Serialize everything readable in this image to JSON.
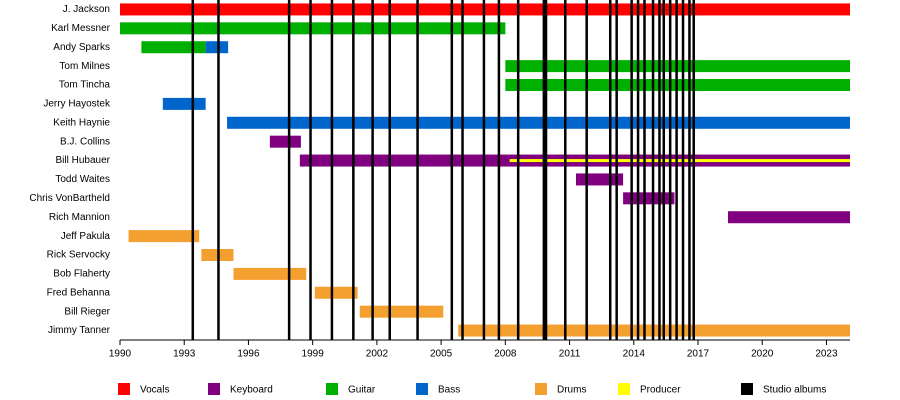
{
  "chart_data": {
    "type": "timeline",
    "xlim": [
      1990,
      2024.1
    ],
    "xticks": [
      1990,
      1993,
      1996,
      1999,
      2002,
      2005,
      2008,
      2011,
      2014,
      2017,
      2020,
      2023
    ],
    "roles": [
      {
        "name": "Vocals",
        "color": "#ff0000"
      },
      {
        "name": "Keyboard",
        "color": "#800080"
      },
      {
        "name": "Guitar",
        "color": "#00b000"
      },
      {
        "name": "Bass",
        "color": "#0066cc"
      },
      {
        "name": "Drums",
        "color": "#f4a030"
      },
      {
        "name": "Producer",
        "color": "#ffff00"
      }
    ],
    "albums": {
      "name": "Studio albums",
      "color": "#000000",
      "values": [
        1993.4,
        1994.6,
        1997.9,
        1998.9,
        1999.9,
        2000.9,
        2001.8,
        2002.6,
        2003.9,
        2005.5,
        2006.0,
        2007.0,
        2007.7,
        2008.6,
        2009.8,
        2009.9,
        2010.8,
        2011.8,
        2012.9,
        2013.2,
        2013.9,
        2014.2,
        2014.5,
        2014.9,
        2015.2,
        2015.4,
        2015.7,
        2016.0,
        2016.3,
        2016.6,
        2016.8
      ]
    },
    "members": [
      {
        "name": "J. Jackson",
        "spans": [
          {
            "role": "Vocals",
            "start": 1990,
            "end": 2024.1
          }
        ]
      },
      {
        "name": "Karl Messner",
        "spans": [
          {
            "role": "Guitar",
            "start": 1990,
            "end": 2008.0
          }
        ]
      },
      {
        "name": "Andy Sparks",
        "spans": [
          {
            "role": "Guitar",
            "start": 1991.0,
            "end": 1994.0
          },
          {
            "role": "Bass",
            "start": 1994.0,
            "end": 1995.05
          }
        ]
      },
      {
        "name": "Tom Milnes",
        "spans": [
          {
            "role": "Guitar",
            "start": 2008.0,
            "end": 2024.1
          }
        ]
      },
      {
        "name": "Tom Tincha",
        "spans": [
          {
            "role": "Guitar",
            "start": 2008.0,
            "end": 2024.1
          }
        ]
      },
      {
        "name": "Jerry Hayostek",
        "spans": [
          {
            "role": "Bass",
            "start": 1992.0,
            "end": 1994.0
          }
        ]
      },
      {
        "name": "Keith Haynie",
        "spans": [
          {
            "role": "Bass",
            "start": 1995.0,
            "end": 2024.1
          }
        ]
      },
      {
        "name": "B.J. Collins",
        "spans": [
          {
            "role": "Keyboard",
            "start": 1997.0,
            "end": 1998.45
          }
        ]
      },
      {
        "name": "Bill Hubauer",
        "spans": [
          {
            "role": "Keyboard",
            "start": 1998.4,
            "end": 2024.1
          },
          {
            "role": "Producer",
            "start": 2008.2,
            "end": 2024.1
          }
        ]
      },
      {
        "name": "Todd Waites",
        "spans": [
          {
            "role": "Keyboard",
            "start": 2011.3,
            "end": 2013.5
          }
        ]
      },
      {
        "name": "Chris VonBartheld",
        "spans": [
          {
            "role": "Keyboard",
            "start": 2013.5,
            "end": 2015.9
          }
        ]
      },
      {
        "name": "Rich Mannion",
        "spans": [
          {
            "role": "Keyboard",
            "start": 2018.4,
            "end": 2024.1
          }
        ]
      },
      {
        "name": "Jeff Pakula",
        "spans": [
          {
            "role": "Drums",
            "start": 1990.4,
            "end": 1993.7
          }
        ]
      },
      {
        "name": "Rick Servocky",
        "spans": [
          {
            "role": "Drums",
            "start": 1993.8,
            "end": 1995.3
          }
        ]
      },
      {
        "name": "Bob Flaherty",
        "spans": [
          {
            "role": "Drums",
            "start": 1995.3,
            "end": 1998.7
          }
        ]
      },
      {
        "name": "Fred Behanna",
        "spans": [
          {
            "role": "Drums",
            "start": 1999.1,
            "end": 2001.1
          }
        ]
      },
      {
        "name": "Bill Rieger",
        "spans": [
          {
            "role": "Drums",
            "start": 2001.2,
            "end": 2005.1
          }
        ]
      },
      {
        "name": "Jimmy Tanner",
        "spans": [
          {
            "role": "Drums",
            "start": 2005.8,
            "end": 2024.1
          }
        ]
      }
    ]
  }
}
